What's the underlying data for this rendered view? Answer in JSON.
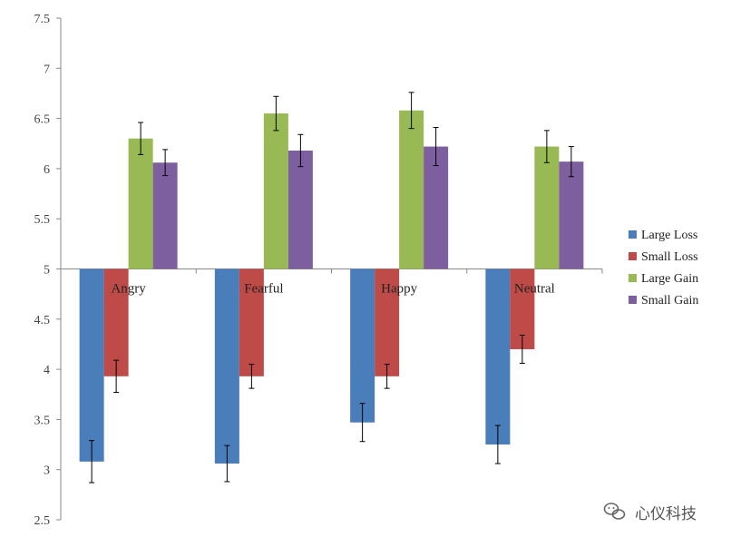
{
  "chart_data": {
    "type": "bar",
    "title": "",
    "xlabel": "",
    "ylabel": "",
    "baseline": 5,
    "ylim": [
      2.5,
      7.5
    ],
    "yticks": [
      2.5,
      3,
      3.5,
      4,
      4.5,
      5,
      5.5,
      6,
      6.5,
      7,
      7.5
    ],
    "ytick_labels": [
      "2.5",
      "3",
      "3.5",
      "4",
      "4.5",
      "5",
      "5.5",
      "6",
      "6.5",
      "7",
      "7.5"
    ],
    "grid": false,
    "legend_position": "right",
    "categories": [
      "Angry",
      "Fearful",
      "Happy",
      "Neutral"
    ],
    "series": [
      {
        "name": "Large Loss",
        "color": "#4a7ebb",
        "values": [
          3.08,
          3.06,
          3.47,
          3.25
        ],
        "errors": [
          0.21,
          0.18,
          0.19,
          0.19
        ]
      },
      {
        "name": "Small Loss",
        "color": "#be4b48",
        "values": [
          3.93,
          3.93,
          3.93,
          4.2
        ],
        "errors": [
          0.16,
          0.12,
          0.12,
          0.14
        ]
      },
      {
        "name": "Large Gain",
        "color": "#98b954",
        "values": [
          6.3,
          6.55,
          6.58,
          6.22
        ],
        "errors": [
          0.16,
          0.17,
          0.18,
          0.16
        ]
      },
      {
        "name": "Small Gain",
        "color": "#7d5fa0",
        "values": [
          6.06,
          6.18,
          6.22,
          6.07
        ],
        "errors": [
          0.13,
          0.16,
          0.19,
          0.15
        ]
      }
    ]
  },
  "watermark": {
    "text": "心仪科技",
    "icon": "wechat-icon"
  }
}
